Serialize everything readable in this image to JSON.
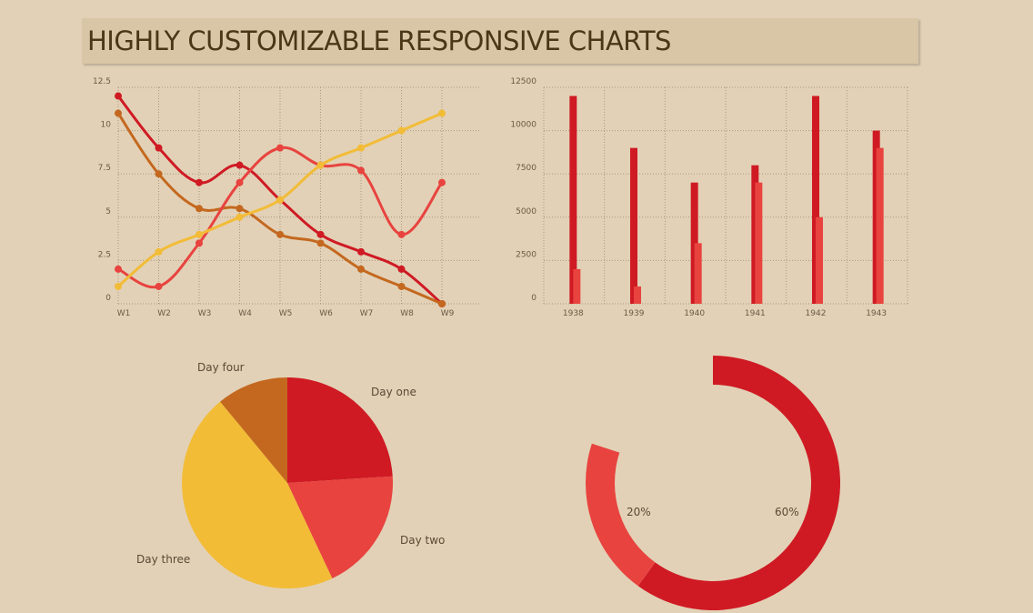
{
  "page": {
    "title": "HIGHLY CUSTOMIZABLE RESPONSIVE CHARTS"
  },
  "chart_data": [
    {
      "type": "line",
      "categories": [
        "W1",
        "W2",
        "W3",
        "W4",
        "W5",
        "W6",
        "W7",
        "W8",
        "W9"
      ],
      "ylim": [
        0,
        12.5
      ],
      "yticks": [
        "0",
        "2.5",
        "5",
        "7.5",
        "10",
        "12.5"
      ],
      "grid": true,
      "series": [
        {
          "color": "#cf1a24",
          "values": [
            12,
            9,
            7,
            8,
            6,
            4,
            3,
            2,
            0
          ]
        },
        {
          "color": "#c4681f",
          "values": [
            11,
            7.5,
            5.5,
            5.5,
            4,
            3.5,
            2,
            1,
            0
          ]
        },
        {
          "color": "#e8433f",
          "values": [
            2,
            1,
            3.5,
            7,
            9,
            8,
            7.7,
            4,
            7
          ]
        },
        {
          "color": "#f2bc37",
          "values": [
            1,
            3,
            4,
            5,
            6,
            8,
            9,
            10,
            11
          ]
        }
      ]
    },
    {
      "type": "bar",
      "categories": [
        "1938",
        "1939",
        "1940",
        "1941",
        "1942",
        "1943"
      ],
      "ylim": [
        0,
        12500
      ],
      "yticks": [
        "0",
        "2500",
        "5000",
        "7500",
        "10000",
        "12500"
      ],
      "grid": true,
      "series": [
        {
          "color": "#cf1a24",
          "values": [
            12000,
            9000,
            7000,
            8000,
            12000,
            10000
          ]
        },
        {
          "color": "#e8433f",
          "values": [
            2000,
            1000,
            3500,
            7000,
            5000,
            9000
          ]
        }
      ]
    },
    {
      "type": "pie",
      "slices": [
        {
          "label": "Day one",
          "value": 24,
          "color": "#cf1a24"
        },
        {
          "label": "Day two",
          "value": 19,
          "color": "#e8433f"
        },
        {
          "label": "Day three",
          "value": 46,
          "color": "#f2bc37"
        },
        {
          "label": "Day four",
          "value": 11,
          "color": "#c4681f"
        }
      ]
    },
    {
      "type": "pie",
      "style": "donut",
      "slices": [
        {
          "label": "60%",
          "value": 60,
          "color": "#cf1a24"
        },
        {
          "label": "20%",
          "value": 20,
          "color": "#e8433f"
        }
      ],
      "total": 100
    }
  ]
}
